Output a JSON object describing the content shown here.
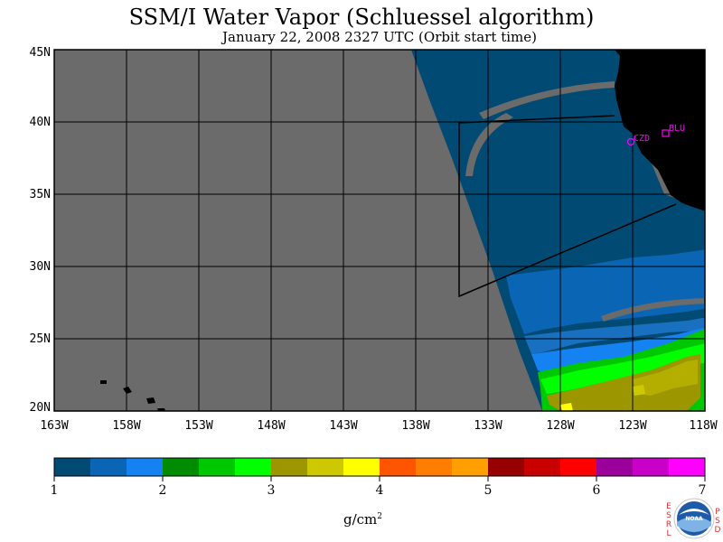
{
  "title": "SSM/I Water Vapor (Schluessel algorithm)",
  "subtitle": "January 22, 2008  2327 UTC  (Orbit start time)",
  "map": {
    "lat_labels": [
      "45N",
      "40N",
      "35N",
      "30N",
      "25N",
      "20N"
    ],
    "lon_labels": [
      "163W",
      "158W",
      "153W",
      "148W",
      "143W",
      "138W",
      "133W",
      "128W",
      "123W",
      "118W"
    ],
    "stations": [
      {
        "id": "CZD",
        "marker": "circle"
      },
      {
        "id": "BLU",
        "marker": "square"
      }
    ],
    "colors": {
      "no_data": "#6b6b6b",
      "land": "#000000",
      "station": "#ff00ff"
    }
  },
  "colorbar": {
    "colors": [
      "#004a73",
      "#0a66b5",
      "#1482f0",
      "#008c00",
      "#00c800",
      "#00ff00",
      "#9c9600",
      "#cdc800",
      "#ffff00",
      "#ff5500",
      "#ff7d00",
      "#ffa000",
      "#960000",
      "#c80000",
      "#ff0000",
      "#9b009b",
      "#c800c8",
      "#ff00ff"
    ],
    "ticks": [
      "1",
      "2",
      "3",
      "4",
      "5",
      "6",
      "7"
    ],
    "unit": "g/cm",
    "unit_exp": "2"
  },
  "logo": {
    "left_letters": [
      "E",
      "S",
      "R",
      "L"
    ],
    "right_letters": [
      "P",
      "S",
      "D"
    ],
    "text": "NOAA"
  }
}
